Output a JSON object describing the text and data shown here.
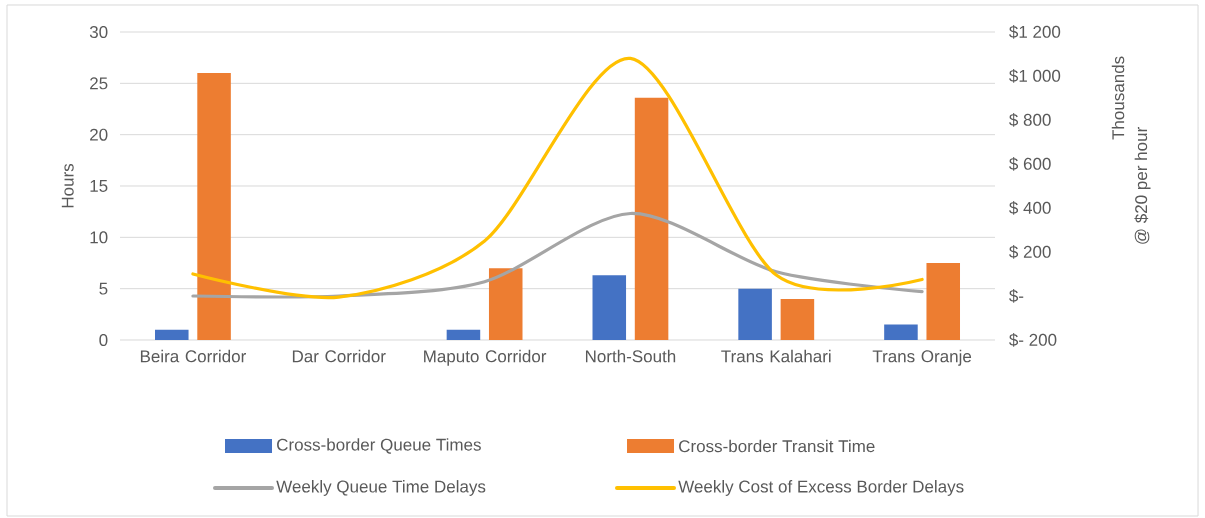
{
  "chart_data": {
    "type": "bar",
    "categories": [
      "Beira Corridor",
      "Dar Corridor",
      "Maputo Corridor",
      "North-South",
      "Trans Kalahari",
      "Trans Oranje"
    ],
    "ylabel": "Hours",
    "y2label": "@ $20 per hour",
    "annotations": [
      "Thousands"
    ],
    "ylim": [
      0,
      30
    ],
    "yticks": [
      0,
      5,
      10,
      15,
      20,
      25,
      30
    ],
    "y2lim": [
      -200,
      1200
    ],
    "y2ticks": [
      {
        "value": -200,
        "label": "$- 200"
      },
      {
        "value": 0,
        "label": "$-"
      },
      {
        "value": 200,
        "label": "$ 200"
      },
      {
        "value": 400,
        "label": "$ 400"
      },
      {
        "value": 600,
        "label": "$ 600"
      },
      {
        "value": 800,
        "label": "$ 800"
      },
      {
        "value": 1000,
        "label": "$1 000"
      },
      {
        "value": 1200,
        "label": "$1 200"
      }
    ],
    "grid": "y",
    "legend": "bottom",
    "marker": "none",
    "line_style": "solid",
    "series": [
      {
        "name": "Cross-border Queue Times",
        "color": "#4472c4",
        "values": [
          1,
          null,
          1,
          6.3,
          5,
          1.5
        ]
      },
      {
        "name": "Cross-border Transit Time",
        "color": "#ed7d31",
        "values": [
          26,
          null,
          7,
          23.6,
          4,
          7.5
        ]
      },
      {
        "name": "Weekly Queue Time Delays",
        "color": "#a5a5a5",
        "type": "line",
        "axis": "y2",
        "values": [
          0,
          0,
          65,
          375,
          110,
          20
        ]
      },
      {
        "name": "Weekly Cost of Excess Border Delays",
        "color": "#ffc000",
        "type": "line",
        "axis": "y2",
        "values": [
          100,
          -5,
          250,
          1080,
          95,
          75
        ]
      }
    ]
  }
}
